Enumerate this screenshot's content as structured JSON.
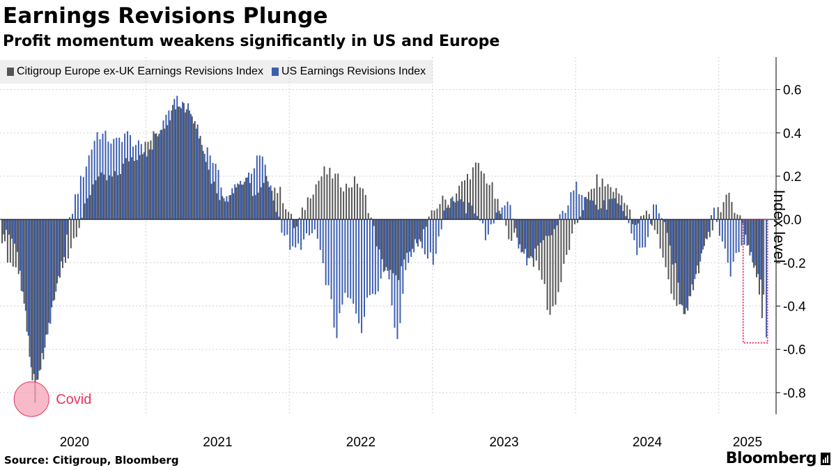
{
  "title": "Earnings Revisions Plunge",
  "subtitle": "Profit momentum weakens significantly in US and Europe",
  "legend": {
    "europe": "Citigroup Europe ex-UK Earnings Revisions Index",
    "us": "US Earnings Revisions Index"
  },
  "colors": {
    "europe": "#555555",
    "us": "#3d5fb0",
    "grid": "#cfcfcf",
    "annotation": "#e8335f",
    "covid_fill": "#f5a3b6"
  },
  "source": "Source: Citigroup, Bloomberg",
  "brand": "Bloomberg",
  "annotation": {
    "covid": "Covid"
  },
  "chart_data": {
    "type": "bar",
    "title": "Earnings Revisions Plunge",
    "subtitle": "Profit momentum weakens significantly in US and Europe",
    "xlabel": "",
    "ylabel": "Index level",
    "ylim": [
      -0.9,
      0.75
    ],
    "yticks": [
      0.6,
      0.4,
      0.2,
      0.0,
      -0.2,
      -0.4,
      -0.6,
      -0.8
    ],
    "ytick_labels": [
      "0.6",
      "0.4",
      "0.2",
      "0.0",
      "-0.2",
      "-0.4",
      "-0.6",
      "-0.8"
    ],
    "xlim": [
      2019.98,
      2025.4
    ],
    "x_ticks": [
      2020,
      2021,
      2022,
      2023,
      2024,
      2025
    ],
    "x_tick_labels": [
      "2020",
      "2021",
      "2022",
      "2023",
      "2024",
      "2025"
    ],
    "grid": true,
    "legend_position": "top-left",
    "interval": "weekly",
    "series": [
      {
        "name": "Citigroup Europe ex-UK Earnings Revisions Index",
        "color": "#555555",
        "start": 2020.0,
        "anchors": [
          [
            2020.0,
            -0.08
          ],
          [
            2020.05,
            -0.2
          ],
          [
            2020.1,
            -0.22
          ],
          [
            2020.15,
            -0.35
          ],
          [
            2020.2,
            -0.72
          ],
          [
            2020.23,
            -0.83
          ],
          [
            2020.28,
            -0.68
          ],
          [
            2020.33,
            -0.46
          ],
          [
            2020.38,
            -0.32
          ],
          [
            2020.45,
            -0.18
          ],
          [
            2020.52,
            -0.05
          ],
          [
            2020.58,
            0.05
          ],
          [
            2020.65,
            0.2
          ],
          [
            2020.72,
            0.18
          ],
          [
            2020.8,
            0.2
          ],
          [
            2020.88,
            0.28
          ],
          [
            2020.95,
            0.3
          ],
          [
            2021.05,
            0.38
          ],
          [
            2021.15,
            0.45
          ],
          [
            2021.22,
            0.55
          ],
          [
            2021.3,
            0.52
          ],
          [
            2021.38,
            0.42
          ],
          [
            2021.45,
            0.2
          ],
          [
            2021.55,
            0.08
          ],
          [
            2021.62,
            0.15
          ],
          [
            2021.7,
            0.18
          ],
          [
            2021.78,
            0.1
          ],
          [
            2021.85,
            0.18
          ],
          [
            2021.95,
            0.12
          ],
          [
            2022.05,
            -0.05
          ],
          [
            2022.15,
            0.12
          ],
          [
            2022.25,
            0.22
          ],
          [
            2022.32,
            0.2
          ],
          [
            2022.4,
            0.15
          ],
          [
            2022.48,
            0.18
          ],
          [
            2022.55,
            0.08
          ],
          [
            2022.65,
            -0.2
          ],
          [
            2022.75,
            -0.28
          ],
          [
            2022.85,
            -0.15
          ],
          [
            2022.95,
            -0.05
          ],
          [
            2023.05,
            0.08
          ],
          [
            2023.15,
            0.1
          ],
          [
            2023.25,
            0.2
          ],
          [
            2023.32,
            0.25
          ],
          [
            2023.42,
            0.15
          ],
          [
            2023.52,
            -0.05
          ],
          [
            2023.6,
            -0.1
          ],
          [
            2023.7,
            -0.18
          ],
          [
            2023.78,
            -0.28
          ],
          [
            2023.82,
            -0.45
          ],
          [
            2023.88,
            -0.35
          ],
          [
            2023.95,
            -0.15
          ],
          [
            2024.05,
            0.05
          ],
          [
            2024.15,
            0.18
          ],
          [
            2024.25,
            0.15
          ],
          [
            2024.35,
            0.1
          ],
          [
            2024.42,
            -0.05
          ],
          [
            2024.5,
            0.05
          ],
          [
            2024.58,
            -0.08
          ],
          [
            2024.62,
            -0.2
          ],
          [
            2024.7,
            -0.38
          ],
          [
            2024.78,
            -0.45
          ],
          [
            2024.85,
            -0.25
          ],
          [
            2024.92,
            -0.12
          ],
          [
            2025.0,
            0.05
          ],
          [
            2025.08,
            0.1
          ],
          [
            2025.15,
            0.02
          ],
          [
            2025.22,
            -0.12
          ],
          [
            2025.28,
            -0.3
          ],
          [
            2025.32,
            -0.52
          ]
        ]
      },
      {
        "name": "US Earnings Revisions Index",
        "color": "#3d5fb0",
        "start": 2020.0,
        "anchors": [
          [
            2020.0,
            -0.05
          ],
          [
            2020.08,
            -0.1
          ],
          [
            2020.15,
            -0.4
          ],
          [
            2020.2,
            -0.7
          ],
          [
            2020.23,
            -0.75
          ],
          [
            2020.3,
            -0.55
          ],
          [
            2020.38,
            -0.3
          ],
          [
            2020.45,
            -0.05
          ],
          [
            2020.5,
            0.1
          ],
          [
            2020.55,
            0.2
          ],
          [
            2020.6,
            0.3
          ],
          [
            2020.65,
            0.4
          ],
          [
            2020.72,
            0.38
          ],
          [
            2020.78,
            0.35
          ],
          [
            2020.85,
            0.4
          ],
          [
            2020.92,
            0.35
          ],
          [
            2021.0,
            0.3
          ],
          [
            2021.08,
            0.4
          ],
          [
            2021.15,
            0.5
          ],
          [
            2021.22,
            0.55
          ],
          [
            2021.3,
            0.5
          ],
          [
            2021.38,
            0.35
          ],
          [
            2021.45,
            0.3
          ],
          [
            2021.55,
            0.1
          ],
          [
            2021.62,
            0.15
          ],
          [
            2021.7,
            0.2
          ],
          [
            2021.8,
            0.3
          ],
          [
            2021.88,
            0.1
          ],
          [
            2021.95,
            -0.05
          ],
          [
            2022.02,
            -0.15
          ],
          [
            2022.1,
            -0.1
          ],
          [
            2022.18,
            -0.05
          ],
          [
            2022.22,
            -0.2
          ],
          [
            2022.28,
            -0.35
          ],
          [
            2022.32,
            -0.55
          ],
          [
            2022.38,
            -0.35
          ],
          [
            2022.45,
            -0.4
          ],
          [
            2022.5,
            -0.5
          ],
          [
            2022.55,
            -0.35
          ],
          [
            2022.62,
            -0.3
          ],
          [
            2022.68,
            -0.2
          ],
          [
            2022.75,
            -0.58
          ],
          [
            2022.8,
            -0.25
          ],
          [
            2022.88,
            -0.1
          ],
          [
            2022.95,
            -0.15
          ],
          [
            2023.0,
            -0.2
          ],
          [
            2023.08,
            0.05
          ],
          [
            2023.15,
            0.1
          ],
          [
            2023.22,
            0.05
          ],
          [
            2023.3,
            0.05
          ],
          [
            2023.38,
            -0.1
          ],
          [
            2023.45,
            0.05
          ],
          [
            2023.5,
            0.08
          ],
          [
            2023.55,
            0.05
          ],
          [
            2023.6,
            -0.15
          ],
          [
            2023.68,
            -0.2
          ],
          [
            2023.72,
            -0.15
          ],
          [
            2023.78,
            -0.1
          ],
          [
            2023.85,
            -0.05
          ],
          [
            2023.92,
            0.05
          ],
          [
            2024.0,
            0.15
          ],
          [
            2024.08,
            0.12
          ],
          [
            2024.15,
            0.05
          ],
          [
            2024.25,
            0.08
          ],
          [
            2024.35,
            0.02
          ],
          [
            2024.42,
            -0.15
          ],
          [
            2024.5,
            -0.1
          ],
          [
            2024.55,
            0.1
          ],
          [
            2024.62,
            -0.05
          ],
          [
            2024.7,
            -0.25
          ],
          [
            2024.75,
            -0.45
          ],
          [
            2024.8,
            -0.3
          ],
          [
            2024.88,
            -0.15
          ],
          [
            2024.95,
            0.05
          ],
          [
            2025.02,
            -0.1
          ],
          [
            2025.08,
            -0.25
          ],
          [
            2025.12,
            -0.15
          ],
          [
            2025.18,
            -0.1
          ],
          [
            2025.25,
            -0.2
          ],
          [
            2025.3,
            -0.3
          ],
          [
            2025.33,
            -0.55
          ]
        ]
      }
    ],
    "annotations": [
      {
        "label": "Covid",
        "x": 2020.2,
        "y": -0.83,
        "shape": "circle"
      },
      {
        "label": "",
        "x0": 2025.17,
        "x1": 2025.34,
        "y0": 0.0,
        "y1": -0.57,
        "shape": "dashed-rect"
      }
    ]
  }
}
